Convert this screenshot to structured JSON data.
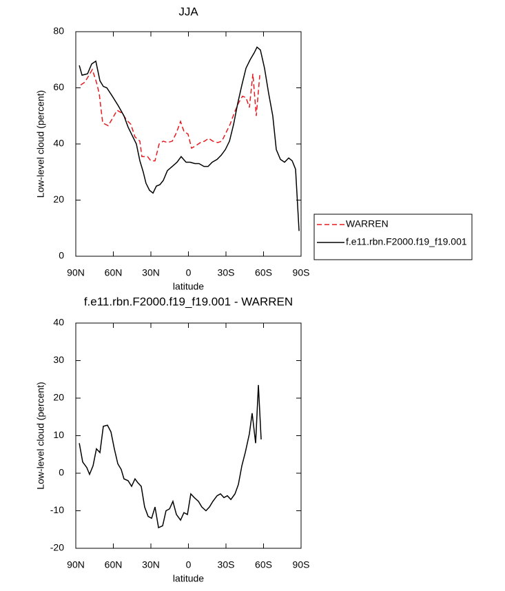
{
  "chart_data": [
    {
      "type": "line",
      "title": "JJA",
      "xlabel": "latitude",
      "ylabel": "Low-level cloud (percent)",
      "xlim": [
        90,
        -90
      ],
      "xticks": [
        {
          "value": 90,
          "label": "90N"
        },
        {
          "value": 60,
          "label": "60N"
        },
        {
          "value": 30,
          "label": "30N"
        },
        0,
        {
          "value": -30,
          "label": "30S"
        },
        {
          "value": -60,
          "label": "60S"
        },
        {
          "value": -90,
          "label": "90S"
        }
      ],
      "ylim": [
        0,
        80
      ],
      "yticks": [
        0,
        20,
        40,
        60,
        80
      ],
      "legend": "outside right",
      "series": [
        {
          "name": "WARREN",
          "color": "#e8191e",
          "linestyle": "dashed",
          "x": [
            86.1,
            82.8,
            80.1,
            76.8,
            73.5,
            71.3,
            68.5,
            64.1,
            60.8,
            57.0,
            53.1,
            49.3,
            46.0,
            42.7,
            38.8,
            37.2,
            32.7,
            30.0,
            26.7,
            23.4,
            20.1,
            16.8,
            12.9,
            9.6,
            6.3,
            3.6,
            0.3,
            -2.5,
            -6.3,
            -9.6,
            -12.9,
            -16.2,
            -19.5,
            -23.4,
            -26.7,
            -30.0,
            -33.3,
            -36.6,
            -39.9,
            -43.2,
            -46.0,
            -48.7,
            -51.5,
            -54.2,
            -57.0
          ],
          "values": [
            61,
            62,
            64,
            66.5,
            62,
            58,
            47.5,
            46.5,
            49,
            52,
            51,
            48.5,
            47,
            42.5,
            41,
            35.5,
            35.5,
            34,
            34,
            40,
            41,
            40.5,
            41,
            44,
            48,
            44.5,
            43.5,
            38.5,
            39.5,
            40.5,
            41,
            42,
            41,
            40.5,
            41,
            44,
            47,
            51,
            54.5,
            57,
            56.5,
            53,
            65,
            50,
            64.5
          ]
        },
        {
          "name": "f.e11.rbn.F2000.f19_f19.001",
          "color": "#000000",
          "linestyle": "solid",
          "x": [
            87.2,
            85.0,
            80.6,
            77.3,
            74.0,
            70.7,
            68.0,
            65.2,
            60.8,
            55.9,
            51.5,
            48.2,
            44.9,
            41.6,
            38.8,
            36.1,
            33.9,
            31.1,
            28.3,
            25.6,
            22.8,
            20.1,
            16.8,
            12.9,
            9.1,
            5.8,
            1.9,
            -1.4,
            -5.2,
            -8.5,
            -12.4,
            -15.7,
            -19.0,
            -22.9,
            -26.2,
            -29.5,
            -32.8,
            -36.1,
            -39.4,
            -42.7,
            -46.0,
            -49.3,
            -52.6,
            -54.8,
            -57.5,
            -60.8,
            -64.1,
            -67.4,
            -70.2,
            -73.5,
            -76.8,
            -80.1,
            -82.9,
            -85.6,
            -88.4
          ],
          "values": [
            68,
            64.5,
            65,
            68.5,
            69.5,
            62.5,
            60.5,
            60,
            57,
            53.5,
            50,
            46,
            43,
            40,
            34,
            30,
            26,
            23.5,
            22.5,
            25,
            25.5,
            27,
            30.5,
            32,
            33.5,
            35.5,
            33.5,
            33.5,
            33,
            33,
            32,
            32,
            33.5,
            34.5,
            36,
            38,
            41,
            47,
            54.5,
            61,
            67,
            70,
            72.5,
            74.5,
            73.5,
            67,
            58,
            50,
            38,
            34.5,
            33.5,
            35,
            34,
            31,
            9
          ]
        }
      ]
    },
    {
      "type": "line",
      "title": "f.e11.rbn.F2000.f19_f19.001 - WARREN",
      "xlabel": "latitude",
      "ylabel": "Low-level cloud (percent)",
      "xlim": [
        90,
        -90
      ],
      "xticks": [
        {
          "value": 90,
          "label": "90N"
        },
        {
          "value": 60,
          "label": "60N"
        },
        {
          "value": 30,
          "label": "30N"
        },
        0,
        {
          "value": -30,
          "label": "30S"
        },
        {
          "value": -60,
          "label": "60S"
        },
        {
          "value": -90,
          "label": "90S"
        }
      ],
      "ylim": [
        -20,
        40
      ],
      "yticks": [
        -20,
        -10,
        0,
        10,
        20,
        30,
        40
      ],
      "series": [
        {
          "color": "#000000",
          "linestyle": "solid",
          "x": [
            87.2,
            84.5,
            81.2,
            79.0,
            76.2,
            73.5,
            70.7,
            68.0,
            64.7,
            61.9,
            59.2,
            56.4,
            53.7,
            51.5,
            48.2,
            45.4,
            42.7,
            40.5,
            37.7,
            35.0,
            32.2,
            29.4,
            26.7,
            23.9,
            20.6,
            17.9,
            15.1,
            12.4,
            9.6,
            6.3,
            3.6,
            0.8,
            -1.9,
            -4.7,
            -8.0,
            -10.7,
            -14.0,
            -16.8,
            -19.5,
            -22.9,
            -25.6,
            -28.4,
            -31.1,
            -33.9,
            -37.2,
            -39.9,
            -42.7,
            -45.4,
            -48.7,
            -50.9,
            -53.7,
            -55.9,
            -58.1
          ],
          "values": [
            8,
            3,
            1.5,
            -0.3,
            2,
            6.5,
            5.5,
            12.5,
            12.8,
            11,
            6.5,
            2.5,
            1,
            -1.5,
            -2,
            -3.5,
            -1.5,
            -2.5,
            -3.5,
            -9,
            -11.5,
            -12,
            -9,
            -14.5,
            -14,
            -10,
            -9.5,
            -7.5,
            -11,
            -12.5,
            -10.5,
            -11,
            -5.5,
            -6.5,
            -7.5,
            -9,
            -10,
            -9,
            -7.5,
            -6,
            -5.5,
            -6.5,
            -6,
            -7,
            -5.5,
            -3,
            2,
            5.5,
            10.5,
            16,
            8,
            23.5,
            9
          ]
        }
      ]
    }
  ]
}
